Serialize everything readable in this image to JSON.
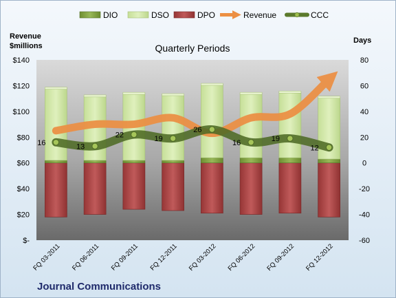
{
  "chart_data": {
    "type": "bar",
    "title": "Quarterly Periods",
    "footer_title": "Journal Communications",
    "left_axis_label_line1": "Revenue",
    "left_axis_label_line2": "$millions",
    "right_axis_label": "Days",
    "categories": [
      "FQ 03-2011",
      "FQ 06-2011",
      "FQ 09-2011",
      "FQ 12-2011",
      "FQ 03-2012",
      "FQ 06-2012",
      "FQ 09-2012",
      "FQ 12-2012"
    ],
    "left_axis": {
      "min": 0,
      "max": 140,
      "step": 20,
      "tick_labels": [
        "$-",
        "$20",
        "$40",
        "$60",
        "$80",
        "$100",
        "$120",
        "$140"
      ]
    },
    "right_axis": {
      "min": -60,
      "max": 80,
      "step": 20,
      "tick_labels": [
        "-60",
        "-40",
        "-20",
        "0",
        "20",
        "40",
        "60",
        "80"
      ]
    },
    "legend": [
      "DIO",
      "DSO",
      "DPO",
      "Revenue",
      "CCC"
    ],
    "legend_position": "top",
    "series": [
      {
        "name": "DIO",
        "axis": "days",
        "kind": "stacked-bar",
        "values": [
          2,
          2,
          2,
          2,
          4,
          4,
          4,
          3
        ]
      },
      {
        "name": "DSO",
        "axis": "days",
        "kind": "stacked-bar",
        "values": [
          56,
          50,
          52,
          51,
          57,
          50,
          51,
          48
        ]
      },
      {
        "name": "DPO",
        "axis": "days",
        "kind": "bar-below-zero",
        "values": [
          -42,
          -40,
          -36,
          -37,
          -39,
          -40,
          -39,
          -42
        ]
      },
      {
        "name": "Revenue",
        "axis": "revenue",
        "kind": "line",
        "values": [
          85,
          90,
          90,
          95,
          83,
          95,
          98,
          125
        ]
      },
      {
        "name": "CCC",
        "axis": "days",
        "kind": "line-with-labels",
        "values": [
          16,
          13,
          22,
          19,
          26,
          16,
          19,
          12
        ]
      }
    ],
    "ccc_labels": [
      "16",
      "13",
      "22",
      "19",
      "26",
      "16",
      "19",
      "12"
    ],
    "colors": {
      "background_top": "#f2f7fb",
      "background_bottom": "#d7e6f2",
      "plot_top": "#d8d8d8",
      "plot_bottom": "#6b6b6b",
      "dio": "#7f9f3f",
      "dso": "#d3e9a9",
      "dpo": "#a94343",
      "revenue": "#ec8f43",
      "ccc": "#5b7a2c",
      "ccc_marker": "#9fbf4f",
      "title": "#1f2a6b"
    }
  }
}
